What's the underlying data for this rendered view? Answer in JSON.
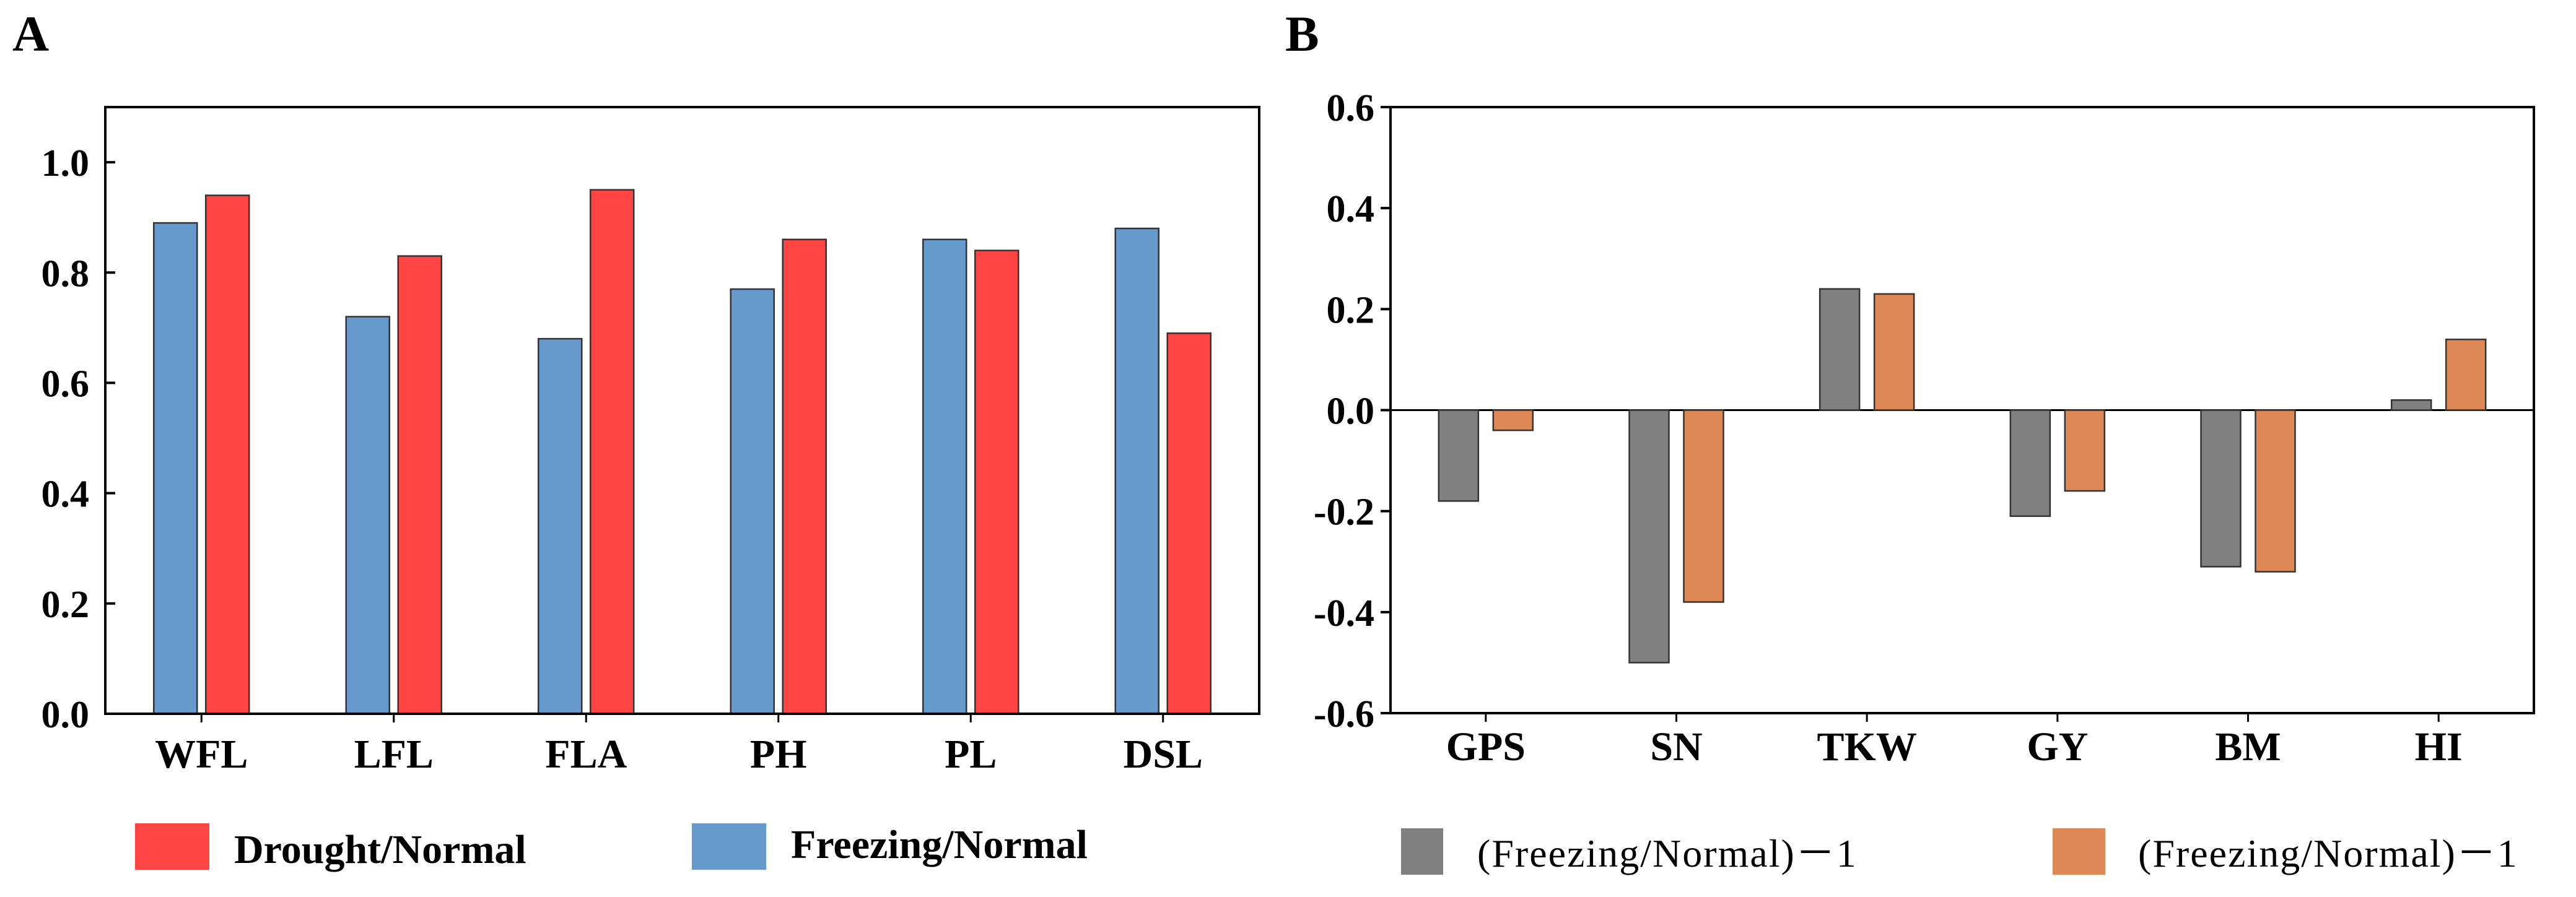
{
  "chart_data": [
    {
      "panel": "A",
      "type": "bar",
      "categories": [
        "WFL",
        "LFL",
        "FLA",
        "PH",
        "PL",
        "DSL"
      ],
      "series": [
        {
          "name": "Freezing/Normal",
          "color": "#6699CC",
          "values": [
            0.89,
            0.72,
            0.68,
            0.77,
            0.86,
            0.88
          ]
        },
        {
          "name": "Drought/Normal",
          "color": "#FF4444",
          "values": [
            0.94,
            0.83,
            0.95,
            0.86,
            0.84,
            0.69
          ]
        }
      ],
      "yticks": [
        "0.0",
        "0.2",
        "0.4",
        "0.6",
        "0.8",
        "1.0"
      ],
      "ylim": [
        0,
        1.1
      ],
      "legend": [
        {
          "label": "Drought/Normal",
          "color": "#FF4444"
        },
        {
          "label": "Freezing/Normal",
          "color": "#6699CC"
        }
      ],
      "legend_position": "bottom"
    },
    {
      "panel": "B",
      "type": "bar",
      "categories": [
        "GPS",
        "SN",
        "TKW",
        "GY",
        "BM",
        "HI"
      ],
      "series": [
        {
          "name": "(Freezing/Normal)－1",
          "color": "#808080",
          "values": [
            -0.18,
            -0.5,
            0.24,
            -0.21,
            -0.31,
            0.02
          ]
        },
        {
          "name": "(Freezing/Normal)－1",
          "color": "#DD8855",
          "values": [
            -0.04,
            -0.38,
            0.23,
            -0.16,
            -0.32,
            0.14
          ]
        }
      ],
      "yticks": [
        "-0.6",
        "-0.4",
        "-0.2",
        "0.0",
        "0.2",
        "0.4",
        "0.6"
      ],
      "ylim": [
        -0.6,
        0.6
      ],
      "legend": [
        {
          "label": "(Freezing/Normal)－1",
          "color": "#808080"
        },
        {
          "label": "(Freezing/Normal)－1",
          "color": "#DD8855"
        }
      ],
      "legend_position": "bottom"
    }
  ]
}
